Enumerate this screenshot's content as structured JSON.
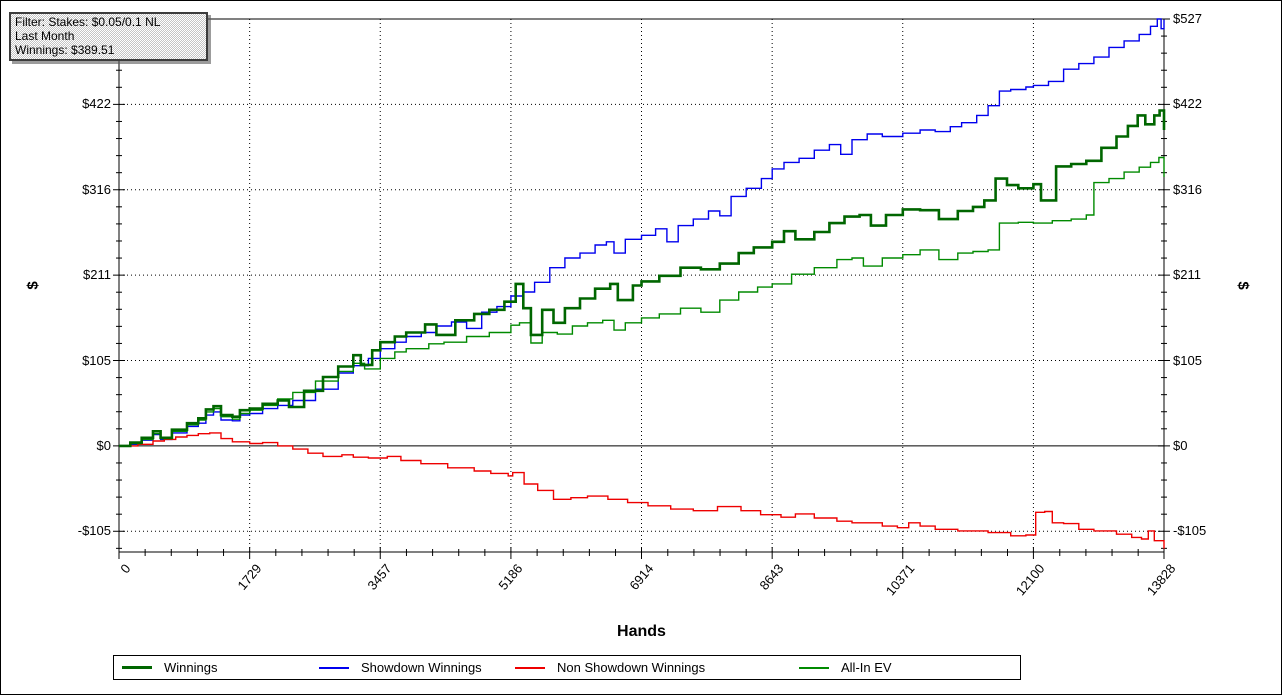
{
  "filter_box": {
    "line1": "Filter: Stakes: $0.05/0.1 NL",
    "line2": "Last Month",
    "line3": "Winnings: $389.51"
  },
  "chart_data": {
    "type": "line",
    "title": "",
    "xlabel": "Hands",
    "ylabel": "$",
    "xlim": [
      0,
      13828
    ],
    "ylim": [
      -131,
      527
    ],
    "grid": "dotted",
    "zero_line": true,
    "legend_position": "bottom",
    "x_ticks": {
      "labels": [
        "0",
        "1729",
        "3457",
        "5186",
        "6914",
        "8643",
        "10371",
        "12100",
        "13828"
      ],
      "values": [
        0,
        1729,
        3457,
        5186,
        6914,
        8643,
        10371,
        12100,
        13828
      ],
      "minor_divisions": 5
    },
    "y_ticks": {
      "labels": [
        "$527",
        "$422",
        "$316",
        "$211",
        "$105",
        "$0",
        "-$105"
      ],
      "values": [
        527,
        421.6,
        316.2,
        210.8,
        105.4,
        0,
        -105.4
      ],
      "minor_divisions": 5
    },
    "series": [
      {
        "name": "Showdown Winnings",
        "color": "#0000EE",
        "width": 1.4,
        "points": [
          [
            0,
            0
          ],
          [
            150,
            2
          ],
          [
            300,
            7
          ],
          [
            450,
            14
          ],
          [
            550,
            8
          ],
          [
            700,
            16
          ],
          [
            900,
            24
          ],
          [
            1050,
            28
          ],
          [
            1150,
            38
          ],
          [
            1250,
            42
          ],
          [
            1350,
            32
          ],
          [
            1500,
            31
          ],
          [
            1600,
            38
          ],
          [
            1729,
            40
          ],
          [
            1900,
            46
          ],
          [
            2100,
            50
          ],
          [
            2300,
            56
          ],
          [
            2600,
            70
          ],
          [
            2900,
            90
          ],
          [
            3100,
            99
          ],
          [
            3300,
            108
          ],
          [
            3457,
            120
          ],
          [
            3650,
            128
          ],
          [
            3800,
            135
          ],
          [
            4000,
            140
          ],
          [
            4200,
            148
          ],
          [
            4400,
            153
          ],
          [
            4600,
            145
          ],
          [
            4800,
            165
          ],
          [
            5000,
            172
          ],
          [
            5186,
            185
          ],
          [
            5350,
            190
          ],
          [
            5500,
            202
          ],
          [
            5700,
            220
          ],
          [
            5900,
            232
          ],
          [
            6100,
            238
          ],
          [
            6300,
            248
          ],
          [
            6450,
            252
          ],
          [
            6550,
            238
          ],
          [
            6700,
            255
          ],
          [
            6914,
            260
          ],
          [
            7100,
            268
          ],
          [
            7250,
            252
          ],
          [
            7400,
            272
          ],
          [
            7600,
            280
          ],
          [
            7800,
            290
          ],
          [
            7950,
            284
          ],
          [
            8100,
            308
          ],
          [
            8300,
            318
          ],
          [
            8500,
            330
          ],
          [
            8643,
            342
          ],
          [
            8800,
            350
          ],
          [
            9000,
            355
          ],
          [
            9200,
            365
          ],
          [
            9400,
            372
          ],
          [
            9550,
            360
          ],
          [
            9700,
            378
          ],
          [
            9900,
            385
          ],
          [
            10100,
            382
          ],
          [
            10371,
            386
          ],
          [
            10600,
            390
          ],
          [
            10800,
            388
          ],
          [
            11000,
            394
          ],
          [
            11150,
            399
          ],
          [
            11350,
            408
          ],
          [
            11500,
            420
          ],
          [
            11650,
            438
          ],
          [
            11800,
            440
          ],
          [
            12000,
            443
          ],
          [
            12100,
            445
          ],
          [
            12300,
            450
          ],
          [
            12500,
            465
          ],
          [
            12700,
            472
          ],
          [
            12900,
            480
          ],
          [
            13100,
            492
          ],
          [
            13300,
            500
          ],
          [
            13500,
            508
          ],
          [
            13650,
            518
          ],
          [
            13740,
            527
          ],
          [
            13790,
            515
          ],
          [
            13828,
            526
          ]
        ]
      },
      {
        "name": "Non Showdown Winnings",
        "color": "#EE0000",
        "width": 1.4,
        "points": [
          [
            0,
            0
          ],
          [
            250,
            2
          ],
          [
            450,
            6
          ],
          [
            600,
            8
          ],
          [
            750,
            11
          ],
          [
            900,
            13
          ],
          [
            1050,
            15
          ],
          [
            1200,
            16
          ],
          [
            1350,
            9
          ],
          [
            1500,
            5
          ],
          [
            1729,
            3
          ],
          [
            1900,
            4
          ],
          [
            2100,
            0
          ],
          [
            2300,
            -4
          ],
          [
            2500,
            -9
          ],
          [
            2700,
            -13
          ],
          [
            2950,
            -11
          ],
          [
            3100,
            -14
          ],
          [
            3300,
            -15
          ],
          [
            3550,
            -13
          ],
          [
            3730,
            -18
          ],
          [
            3995,
            -22
          ],
          [
            4350,
            -27
          ],
          [
            4700,
            -31
          ],
          [
            4920,
            -34
          ],
          [
            5150,
            -37
          ],
          [
            5210,
            -33
          ],
          [
            5360,
            -47
          ],
          [
            5540,
            -55
          ],
          [
            5750,
            -66
          ],
          [
            5980,
            -64
          ],
          [
            6200,
            -62
          ],
          [
            6470,
            -66
          ],
          [
            6730,
            -70
          ],
          [
            7000,
            -74
          ],
          [
            7300,
            -78
          ],
          [
            7600,
            -80
          ],
          [
            7920,
            -75
          ],
          [
            8230,
            -80
          ],
          [
            8490,
            -85
          ],
          [
            8760,
            -88
          ],
          [
            8950,
            -84
          ],
          [
            9200,
            -89
          ],
          [
            9500,
            -93
          ],
          [
            9700,
            -95
          ],
          [
            10100,
            -99
          ],
          [
            10300,
            -101
          ],
          [
            10450,
            -95
          ],
          [
            10600,
            -99
          ],
          [
            10800,
            -103
          ],
          [
            11100,
            -105
          ],
          [
            11500,
            -107
          ],
          [
            11800,
            -111
          ],
          [
            12000,
            -110
          ],
          [
            12130,
            -82
          ],
          [
            12250,
            -81
          ],
          [
            12350,
            -95
          ],
          [
            12500,
            -96
          ],
          [
            12700,
            -103
          ],
          [
            12900,
            -105
          ],
          [
            13200,
            -109
          ],
          [
            13400,
            -113
          ],
          [
            13530,
            -115
          ],
          [
            13620,
            -105
          ],
          [
            13700,
            -117
          ],
          [
            13828,
            -127
          ]
        ]
      },
      {
        "name": "All-In EV",
        "color": "#008A00",
        "width": 1.4,
        "points": [
          [
            0,
            0
          ],
          [
            150,
            3
          ],
          [
            300,
            8
          ],
          [
            450,
            15
          ],
          [
            550,
            9
          ],
          [
            700,
            18
          ],
          [
            900,
            26
          ],
          [
            1050,
            32
          ],
          [
            1150,
            42
          ],
          [
            1250,
            46
          ],
          [
            1350,
            36
          ],
          [
            1500,
            33
          ],
          [
            1600,
            40
          ],
          [
            1729,
            44
          ],
          [
            1900,
            50
          ],
          [
            2100,
            58
          ],
          [
            2300,
            66
          ],
          [
            2600,
            80
          ],
          [
            2900,
            92
          ],
          [
            3100,
            102
          ],
          [
            3250,
            95
          ],
          [
            3457,
            108
          ],
          [
            3650,
            116
          ],
          [
            3800,
            120
          ],
          [
            4100,
            126
          ],
          [
            4300,
            128
          ],
          [
            4600,
            135
          ],
          [
            4900,
            140
          ],
          [
            5186,
            149
          ],
          [
            5300,
            152
          ],
          [
            5450,
            127
          ],
          [
            5600,
            140
          ],
          [
            5800,
            138
          ],
          [
            6000,
            148
          ],
          [
            6200,
            152
          ],
          [
            6400,
            155
          ],
          [
            6550,
            143
          ],
          [
            6700,
            152
          ],
          [
            6914,
            158
          ],
          [
            7150,
            163
          ],
          [
            7430,
            170
          ],
          [
            7700,
            165
          ],
          [
            7950,
            180
          ],
          [
            8200,
            190
          ],
          [
            8450,
            196
          ],
          [
            8643,
            200
          ],
          [
            8900,
            212
          ],
          [
            9200,
            220
          ],
          [
            9500,
            230
          ],
          [
            9700,
            232
          ],
          [
            9850,
            222
          ],
          [
            10100,
            232
          ],
          [
            10371,
            236
          ],
          [
            10600,
            242
          ],
          [
            10850,
            230
          ],
          [
            11100,
            238
          ],
          [
            11300,
            240
          ],
          [
            11500,
            242
          ],
          [
            11650,
            275
          ],
          [
            11900,
            276
          ],
          [
            12100,
            275
          ],
          [
            12350,
            278
          ],
          [
            12600,
            280
          ],
          [
            12800,
            285
          ],
          [
            12900,
            325
          ],
          [
            13100,
            330
          ],
          [
            13300,
            338
          ],
          [
            13500,
            344
          ],
          [
            13650,
            350
          ],
          [
            13760,
            356
          ],
          [
            13828,
            332
          ]
        ]
      },
      {
        "name": "Winnings",
        "color": "#006600",
        "width": 2.6,
        "points": [
          [
            0,
            0
          ],
          [
            150,
            4
          ],
          [
            300,
            10
          ],
          [
            450,
            18
          ],
          [
            550,
            10
          ],
          [
            700,
            20
          ],
          [
            900,
            28
          ],
          [
            1050,
            34
          ],
          [
            1150,
            45
          ],
          [
            1250,
            49
          ],
          [
            1350,
            38
          ],
          [
            1500,
            36
          ],
          [
            1600,
            44
          ],
          [
            1729,
            46
          ],
          [
            1900,
            52
          ],
          [
            2100,
            56
          ],
          [
            2250,
            48
          ],
          [
            2450,
            68
          ],
          [
            2700,
            85
          ],
          [
            2900,
            98
          ],
          [
            3100,
            112
          ],
          [
            3200,
            100
          ],
          [
            3350,
            118
          ],
          [
            3457,
            128
          ],
          [
            3650,
            135
          ],
          [
            3800,
            140
          ],
          [
            4050,
            150
          ],
          [
            4200,
            137
          ],
          [
            4450,
            155
          ],
          [
            4700,
            163
          ],
          [
            4900,
            168
          ],
          [
            5100,
            178
          ],
          [
            5250,
            200
          ],
          [
            5350,
            170
          ],
          [
            5450,
            137
          ],
          [
            5600,
            168
          ],
          [
            5750,
            152
          ],
          [
            5900,
            170
          ],
          [
            6100,
            182
          ],
          [
            6300,
            194
          ],
          [
            6500,
            200
          ],
          [
            6600,
            180
          ],
          [
            6800,
            198
          ],
          [
            6914,
            203
          ],
          [
            7150,
            210
          ],
          [
            7430,
            220
          ],
          [
            7700,
            218
          ],
          [
            7950,
            225
          ],
          [
            8200,
            238
          ],
          [
            8400,
            245
          ],
          [
            8643,
            252
          ],
          [
            8800,
            265
          ],
          [
            8950,
            255
          ],
          [
            9200,
            264
          ],
          [
            9400,
            275
          ],
          [
            9600,
            283
          ],
          [
            9800,
            285
          ],
          [
            9950,
            272
          ],
          [
            10150,
            285
          ],
          [
            10371,
            292
          ],
          [
            10600,
            291
          ],
          [
            10850,
            280
          ],
          [
            11100,
            290
          ],
          [
            11300,
            295
          ],
          [
            11450,
            303
          ],
          [
            11600,
            330
          ],
          [
            11750,
            322
          ],
          [
            11900,
            318
          ],
          [
            12100,
            323
          ],
          [
            12200,
            303
          ],
          [
            12400,
            345
          ],
          [
            12600,
            348
          ],
          [
            12800,
            352
          ],
          [
            13000,
            368
          ],
          [
            13200,
            382
          ],
          [
            13350,
            395
          ],
          [
            13480,
            408
          ],
          [
            13580,
            397
          ],
          [
            13700,
            408
          ],
          [
            13770,
            414
          ],
          [
            13828,
            390
          ]
        ]
      }
    ],
    "legend_order": [
      "Winnings",
      "Showdown Winnings",
      "Non Showdown Winnings",
      "All-In EV"
    ]
  }
}
